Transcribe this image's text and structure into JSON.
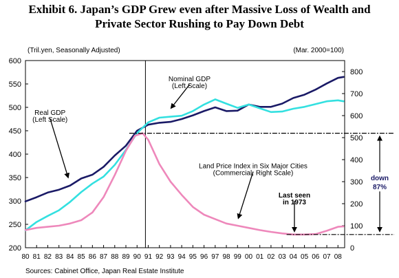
{
  "title": {
    "line1": "Exhibit 6.  Japan’s GDP Grew even after Massive Loss of Wealth and",
    "line2": "Private Sector Rushing to Pay Down Debt"
  },
  "source": "Sources: Cabinet Office, Japan Real Estate Institute",
  "chart_data": {
    "type": "line",
    "left_axis_note": "(Tril.yen, Seasonally Adjusted)",
    "right_axis_note": "(Mar. 2000=100)",
    "x_ticks": [
      "80",
      "81",
      "82",
      "83",
      "84",
      "85",
      "86",
      "87",
      "88",
      "89",
      "90",
      "91",
      "92",
      "93",
      "94",
      "95",
      "96",
      "97",
      "98",
      "99",
      "00",
      "01",
      "02",
      "03",
      "04",
      "05",
      "06",
      "07",
      "08"
    ],
    "xlim": [
      1980,
      2008.6
    ],
    "ylim_left": [
      200,
      600
    ],
    "yticks_left": [
      200,
      250,
      300,
      350,
      400,
      450,
      500,
      550,
      600
    ],
    "ylim_right": [
      0,
      850
    ],
    "yticks_right": [
      0,
      100,
      200,
      300,
      400,
      500,
      600,
      700,
      800
    ],
    "grid": false,
    "vertical_marker_x": 1990.75,
    "series": [
      {
        "axis": "left",
        "color": "#1a1a66",
        "x": [
          1980,
          1981,
          1982,
          1983,
          1984,
          1985,
          1986,
          1987,
          1988,
          1989,
          1990,
          1991,
          1992,
          1993,
          1994,
          1995,
          1996,
          1997,
          1998,
          1999,
          2000,
          2001,
          2002,
          2003,
          2004,
          2005,
          2006,
          2007,
          2008,
          2008.5
        ],
        "values": [
          299,
          308,
          318,
          324,
          333,
          348,
          356,
          373,
          397,
          418,
          450,
          463,
          467,
          469,
          475,
          483,
          492,
          500,
          492,
          493,
          506,
          501,
          501,
          508,
          520,
          527,
          538,
          551,
          563,
          565
        ]
      },
      {
        "axis": "left",
        "color": "#33e0e0",
        "x": [
          1980,
          1981,
          1982,
          1983,
          1984,
          1985,
          1986,
          1987,
          1988,
          1989,
          1990,
          1991,
          1992,
          1993,
          1994,
          1995,
          1996,
          1997,
          1998,
          1999,
          2000,
          2001,
          2002,
          2003,
          2004,
          2005,
          2006,
          2007,
          2008,
          2008.5
        ],
        "values": [
          237,
          255,
          268,
          280,
          298,
          319,
          337,
          352,
          377,
          409,
          445,
          468,
          478,
          480,
          482,
          492,
          506,
          517,
          508,
          499,
          506,
          498,
          490,
          491,
          497,
          501,
          507,
          513,
          515,
          513
        ]
      },
      {
        "axis": "right",
        "color": "#ee88bb",
        "x": [
          1980,
          1981,
          1982,
          1983,
          1984,
          1985,
          1986,
          1987,
          1988,
          1989,
          1989.8,
          1990.5,
          1991,
          1992,
          1993,
          1994,
          1995,
          1996,
          1997,
          1998,
          1999,
          2000,
          2001,
          2002,
          2003,
          2004,
          2005,
          2006,
          2007,
          2008,
          2008.5
        ],
        "values": [
          80,
          90,
          95,
          100,
          110,
          125,
          160,
          230,
          330,
          440,
          508,
          520,
          490,
          380,
          300,
          240,
          185,
          150,
          130,
          110,
          100,
          90,
          80,
          72,
          65,
          60,
          60,
          62,
          77,
          95,
          97
        ]
      }
    ],
    "annotations": [
      {
        "text": "Nominal GDP",
        "x": 1994.7,
        "y_left": 556,
        "arrow_to": [
          1993.1,
          500
        ]
      },
      {
        "text": "(Left Scale)",
        "x": 1994.7,
        "y_left": 541
      },
      {
        "text": "Real GDP",
        "x": 1982.2,
        "y_left": 484,
        "arrow_to": [
          1983.8,
          352
        ]
      },
      {
        "text": "(Left Scale)",
        "x": 1982.2,
        "y_left": 469
      },
      {
        "text": "Land Price Index in Six Major Cities",
        "x": 2000.4,
        "y_left": 370,
        "arrow_to": [
          1999.1,
          265
        ]
      },
      {
        "text": "(Commercial, Right Scale)",
        "x": 2000.4,
        "y_left": 355
      },
      {
        "text": "Last seen",
        "x": 2004.1,
        "y_left": 307,
        "bold": true,
        "arrow_to": [
          2004.1,
          237
        ]
      },
      {
        "text": "in 1973",
        "x": 2004.1,
        "y_left": 293,
        "bold": true
      }
    ],
    "reference_levels": {
      "high": 520,
      "low": 60
    },
    "decline_label_1": "down",
    "decline_label_2": "87%"
  }
}
